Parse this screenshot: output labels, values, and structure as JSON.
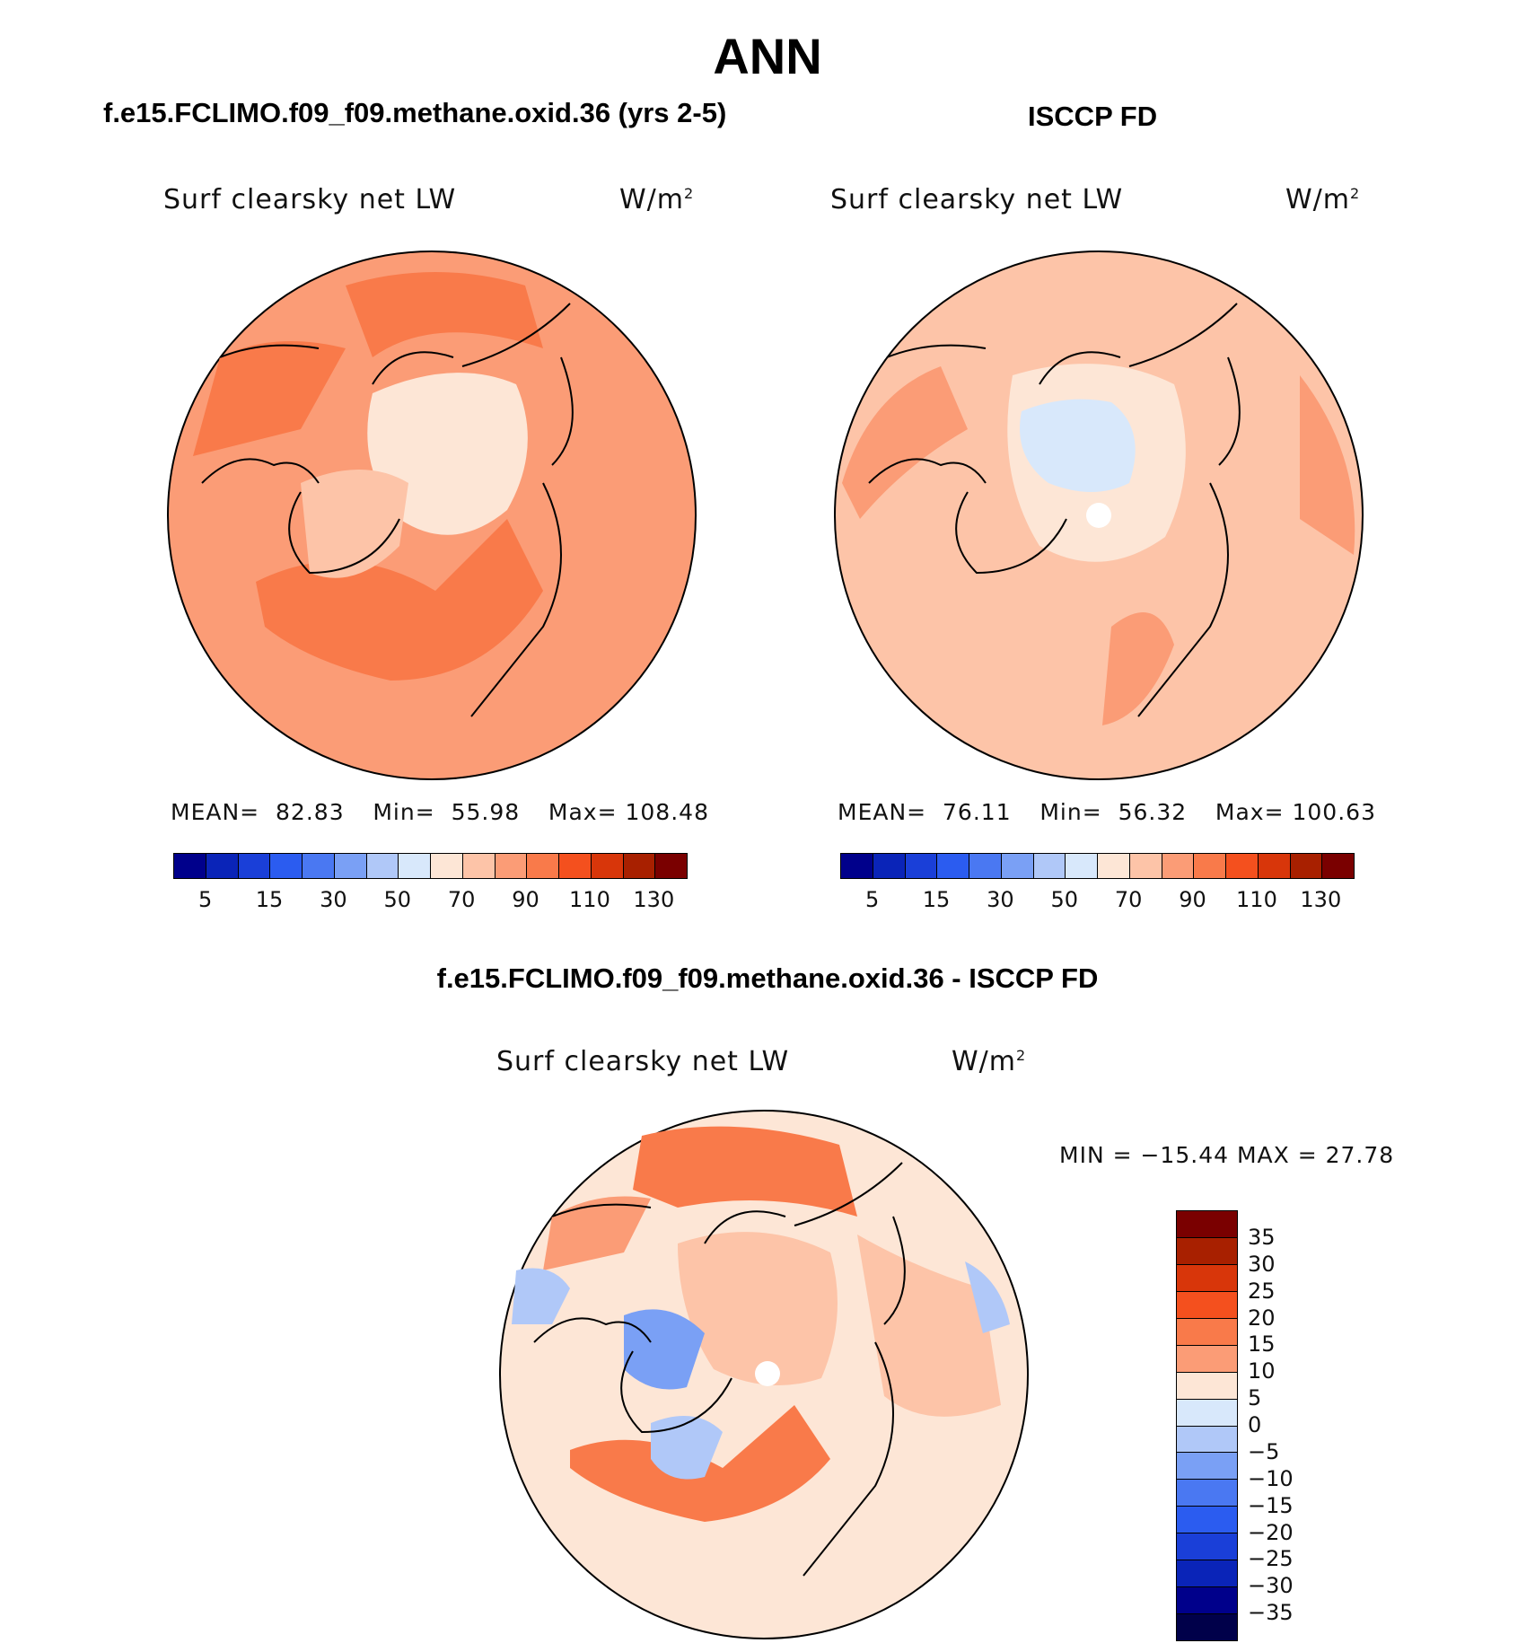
{
  "page_title": "ANN",
  "panels": [
    {
      "heading": "f.e15.FCLIMO.f09_f09.methane.oxid.36 (yrs 2-5)",
      "variable": "Surf clearsky net LW",
      "units": "W/m",
      "units_exp": "2",
      "stats": {
        "mean_label": "MEAN=",
        "mean": "82.83",
        "min_label": "Min=",
        "min": "55.98",
        "max_label": "Max=",
        "max": "108.48"
      },
      "base_color": "#fb9c76"
    },
    {
      "heading": "ISCCP FD",
      "variable": "Surf clearsky net LW",
      "units": "W/m",
      "units_exp": "2",
      "stats": {
        "mean_label": "MEAN=",
        "mean": "76.11",
        "min_label": "Min=",
        "min": "56.32",
        "max_label": "Max=",
        "max": "100.63"
      },
      "base_color": "#fdc4a8"
    }
  ],
  "abs_colorbar": {
    "colors": [
      "#00008b",
      "#0a24b8",
      "#1a3fd8",
      "#2b5cf0",
      "#4a78f2",
      "#7aa0f5",
      "#b0c8f8",
      "#d8e8fb",
      "#fde6d6",
      "#fdc4a8",
      "#fb9c76",
      "#f97a4a",
      "#f4501e",
      "#d8360a",
      "#a82000",
      "#7a0000"
    ],
    "tick_labels": [
      "5",
      "15",
      "30",
      "50",
      "70",
      "90",
      "110",
      "130"
    ]
  },
  "diff_panel": {
    "heading": "f.e15.FCLIMO.f09_f09.methane.oxid.36 - ISCCP FD",
    "variable": "Surf clearsky net LW",
    "units": "W/m",
    "units_exp": "2",
    "minmax_text": "MIN = −15.44 MAX =   27.78",
    "base_color": "#fde6d6"
  },
  "diff_colorbar": {
    "colors": [
      "#7a0000",
      "#a82000",
      "#d8360a",
      "#f4501e",
      "#f97a4a",
      "#fb9c76",
      "#fde6d6",
      "#d8e8fb",
      "#b0c8f8",
      "#7aa0f5",
      "#4a78f2",
      "#2b5cf0",
      "#1a3fd8",
      "#0a24b8",
      "#00008b",
      "#00004a"
    ],
    "tick_labels": [
      "35",
      "30",
      "25",
      "20",
      "15",
      "10",
      "5",
      "0",
      "−5",
      "−10",
      "−15",
      "−20",
      "−25",
      "−30",
      "−35"
    ]
  },
  "map_overlays": [
    {
      "name": "warm",
      "color": "#f97a4a"
    },
    {
      "name": "cool",
      "color": "#d8e8fb"
    },
    {
      "name": "blue",
      "color": "#b0c8f8"
    },
    {
      "name": "pale",
      "color": "#fde6d6"
    }
  ]
}
